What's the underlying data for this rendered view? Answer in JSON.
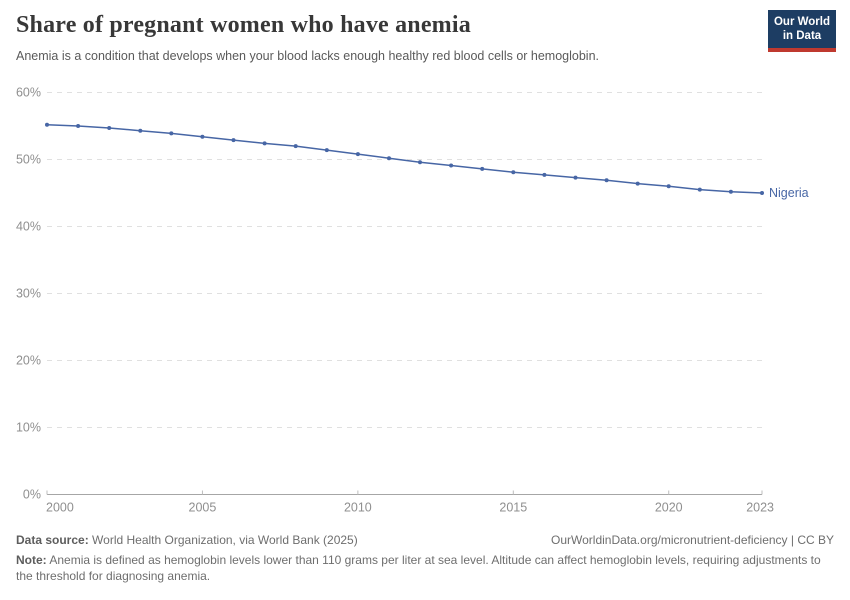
{
  "header": {
    "title": "Share of pregnant women who have anemia",
    "subtitle": "Anemia is a condition that develops when your blood lacks enough healthy red blood cells or hemoglobin.",
    "logo": {
      "line1": "Our World",
      "line2": "in Data"
    }
  },
  "chart_data": {
    "type": "line",
    "title": "Share of pregnant women who have anemia",
    "x": [
      2000,
      2001,
      2002,
      2003,
      2004,
      2005,
      2006,
      2007,
      2008,
      2009,
      2010,
      2011,
      2012,
      2013,
      2014,
      2015,
      2016,
      2017,
      2018,
      2019,
      2020,
      2021,
      2022,
      2023
    ],
    "series": [
      {
        "name": "Nigeria",
        "color": "#4766a5",
        "values": [
          55.2,
          55.0,
          54.7,
          54.3,
          53.9,
          53.4,
          52.9,
          52.4,
          52.0,
          51.4,
          50.8,
          50.2,
          49.6,
          49.1,
          48.6,
          48.1,
          47.7,
          47.3,
          46.9,
          46.4,
          46.0,
          45.5,
          45.2,
          45.0
        ]
      }
    ],
    "xlabel": "",
    "ylabel": "",
    "ylim": [
      0,
      60
    ],
    "yticks": [
      0,
      10,
      20,
      30,
      40,
      50,
      60
    ],
    "ytick_suffix": "%",
    "xticks": [
      2000,
      2005,
      2010,
      2015,
      2020,
      2023
    ],
    "grid": "horizontal-dashed",
    "legend_position": "end-of-line"
  },
  "footer": {
    "source_label": "Data source:",
    "source_text": " World Health Organization, via World Bank (2025)",
    "link_text": "OurWorldinData.org/micronutrient-deficiency | CC BY",
    "note_label": "Note:",
    "note_text": " Anemia is defined as hemoglobin levels lower than 110 grams per liter at sea level. Altitude can affect hemoglobin levels, requiring adjustments to the threshold for diagnosing anemia."
  },
  "colors": {
    "accent_line": "#4766a5",
    "grid": "#e0e0e0",
    "axis": "#a6a6a6",
    "tick_mark": "#bdbdbd",
    "logo_bg": "#1d3d63",
    "logo_red": "#bf392f"
  }
}
